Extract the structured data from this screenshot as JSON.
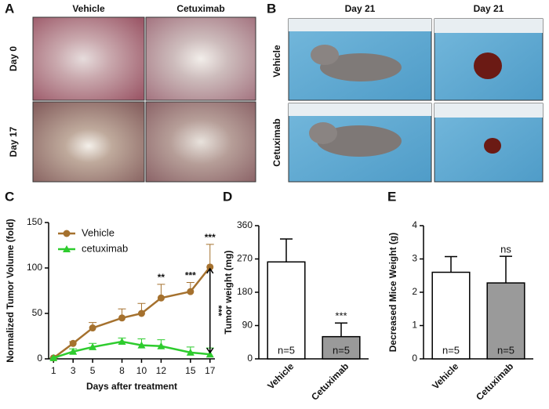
{
  "photo_panels": [
    {
      "letter": "A",
      "columns": [
        "Vehicle",
        "Cetuximab"
      ],
      "rows": [
        "Day 0",
        "Day 17"
      ]
    },
    {
      "letter": "B",
      "columns": [
        "Day 21",
        "Day 21"
      ],
      "rows": [
        "Vehicle",
        "Cetuximab"
      ]
    }
  ],
  "chart_data": [
    {
      "letter": "C",
      "type": "line",
      "ylabel": "Normalized Tumor Volume (fold)",
      "xlabel": "Days after treatment",
      "x": [
        1,
        3,
        5,
        8,
        10,
        12,
        15,
        17
      ],
      "xlim": [
        0.5,
        17.5
      ],
      "xticks": [
        1,
        3,
        5,
        8,
        10,
        12,
        15,
        17
      ],
      "ylim": [
        0,
        150
      ],
      "yticks": [
        0,
        50,
        100,
        150
      ],
      "series": [
        {
          "name": "Vehicle",
          "color": "#a5712e",
          "marker": "circle",
          "values": [
            1,
            17,
            34,
            45,
            50,
            67,
            74,
            101
          ],
          "errors": [
            0,
            2,
            6,
            10,
            11,
            15,
            10,
            25
          ]
        },
        {
          "name": "cetuximab",
          "color": "#2ecc2e",
          "marker": "triangle",
          "values": [
            1,
            8,
            13,
            19,
            15,
            14,
            7,
            5
          ],
          "errors": [
            0,
            3,
            4,
            4,
            7,
            7,
            6,
            7
          ]
        }
      ],
      "annotations": [
        {
          "text": "**",
          "x": 12
        },
        {
          "text": "***",
          "x": 15
        },
        {
          "text": "***",
          "x": 17
        }
      ],
      "comparison": {
        "text": "***",
        "x": 17
      }
    },
    {
      "letter": "D",
      "type": "bar",
      "ylabel": "Tumor weight (mg)",
      "categories": [
        "Vehicle",
        "Cetuximab"
      ],
      "values": [
        262,
        60
      ],
      "errors": [
        62,
        37
      ],
      "colors": [
        "#ffffff",
        "#9a9a9a"
      ],
      "ylim": [
        0,
        360
      ],
      "yticks": [
        0,
        90,
        180,
        270,
        360
      ],
      "bar_labels": [
        "n=5",
        "n=5"
      ],
      "significance": [
        {
          "text": "***",
          "index": 1
        }
      ]
    },
    {
      "letter": "E",
      "type": "bar",
      "ylabel": "Decreased Mice Weight (g)",
      "categories": [
        "Vehicle",
        "Cetuximab"
      ],
      "values": [
        2.6,
        2.28
      ],
      "errors": [
        0.47,
        0.8
      ],
      "colors": [
        "#ffffff",
        "#9a9a9a"
      ],
      "ylim": [
        0,
        4
      ],
      "yticks": [
        0,
        1,
        2,
        3,
        4
      ],
      "bar_labels": [
        "n=5",
        "n=5"
      ],
      "significance": [
        {
          "text": "ns",
          "index": 1
        }
      ]
    }
  ]
}
